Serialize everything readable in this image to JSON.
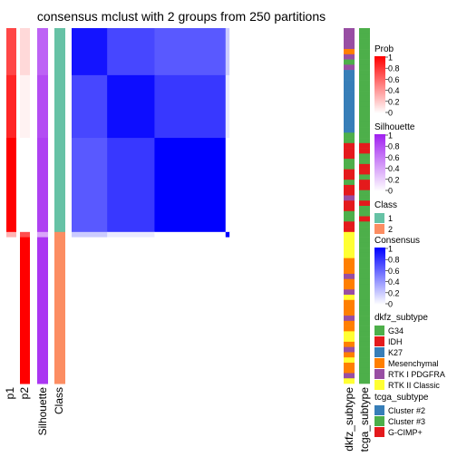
{
  "title": "consensus mclust with 2 groups from 250 partitions",
  "colors": {
    "prob_high": "#ff0000",
    "prob_low": "#ffffff",
    "silhouette_high": "#a020f0",
    "class_1": "#66c2a5",
    "class_2": "#fc8d62",
    "consensus_high": "#0000ff",
    "consensus_low": "#ffffff"
  },
  "chart_data": {
    "type": "heatmap",
    "matrix": {
      "legend_title": "Consensus",
      "groups": [
        {
          "class": 1,
          "rows": 39,
          "blocks": [
            {
              "rows": 9,
              "p1": 0.72,
              "p2": 0.15,
              "silhouette": 0.7
            },
            {
              "rows": 12,
              "p1": 0.85,
              "p2": 0.05,
              "silhouette": 0.8
            },
            {
              "rows": 18,
              "p1": 1.0,
              "p2": 0.0,
              "silhouette": 0.85
            }
          ]
        },
        {
          "class": 2,
          "rows": 29,
          "blocks": [
            {
              "rows": 1,
              "p1": 0.3,
              "p2": 0.7,
              "silhouette": 0.4
            },
            {
              "rows": 28,
              "p1": 0.0,
              "p2": 1.0,
              "silhouette": 0.9
            }
          ]
        }
      ],
      "consensus_blocks": [
        {
          "row_block": 0,
          "col_block": 0,
          "value": 0.92
        },
        {
          "row_block": 0,
          "col_block": 1,
          "value": 0.72
        },
        {
          "row_block": 0,
          "col_block": 2,
          "value": 0.65
        },
        {
          "row_block": 0,
          "col_block": 3,
          "value": 0.2
        },
        {
          "row_block": 1,
          "col_block": 1,
          "value": 0.95
        },
        {
          "row_block": 1,
          "col_block": 2,
          "value": 0.78
        },
        {
          "row_block": 1,
          "col_block": 3,
          "value": 0.08
        },
        {
          "row_block": 2,
          "col_block": 2,
          "value": 1.0
        },
        {
          "row_block": 2,
          "col_block": 3,
          "value": 0.0
        },
        {
          "row_block": 3,
          "col_block": 3,
          "value": 1.0
        }
      ]
    },
    "annotations_left": [
      {
        "name": "p1",
        "legend": "Prob"
      },
      {
        "name": "p2",
        "legend": "Prob"
      },
      {
        "name": "Silhouette",
        "legend": "Silhouette"
      },
      {
        "name": "Class",
        "legend": "Class"
      }
    ],
    "annotations_right": [
      {
        "name": "dkfz_subtype",
        "legend": "dkfz_subtype"
      },
      {
        "name": "tcga_subtype",
        "legend": "tcga_subtype"
      }
    ],
    "dkfz_sequence": [
      "RTK I PDGFRA",
      "RTK I PDGFRA",
      "RTK I PDGFRA",
      "RTK I PDGFRA",
      "Mesenchymal",
      "RTK I PDGFRA",
      "G34",
      "RTK I PDGFRA",
      "K27",
      "K27",
      "K27",
      "K27",
      "K27",
      "K27",
      "K27",
      "K27",
      "K27",
      "K27",
      "K27",
      "K27",
      "G34",
      "G34",
      "IDH",
      "IDH",
      "IDH",
      "G34",
      "G34",
      "IDH",
      "IDH",
      "G34",
      "IDH",
      "IDH",
      "RTK I PDGFRA",
      "IDH",
      "IDH",
      "G34",
      "G34",
      "IDH",
      "IDH",
      "RTK II Classic",
      "RTK II Classic",
      "RTK II Classic",
      "RTK II Classic",
      "RTK II Classic",
      "Mesenchymal",
      "Mesenchymal",
      "Mesenchymal",
      "RTK I PDGFRA",
      "Mesenchymal",
      "Mesenchymal",
      "RTK I PDGFRA",
      "RTK II Classic",
      "Mesenchymal",
      "Mesenchymal",
      "Mesenchymal",
      "RTK I PDGFRA",
      "Mesenchymal",
      "Mesenchymal",
      "RTK II Classic",
      "RTK II Classic",
      "Mesenchymal",
      "RTK I PDGFRA",
      "Mesenchymal",
      "RTK II Classic",
      "Mesenchymal",
      "Mesenchymal",
      "RTK I PDGFRA",
      "RTK II Classic"
    ],
    "tcga_sequence": [
      "Cluster #3",
      "Cluster #3",
      "Cluster #3",
      "Cluster #3",
      "Cluster #3",
      "Cluster #3",
      "Cluster #3",
      "Cluster #3",
      "Cluster #3",
      "Cluster #3",
      "Cluster #3",
      "Cluster #3",
      "Cluster #3",
      "Cluster #3",
      "Cluster #3",
      "Cluster #3",
      "Cluster #3",
      "Cluster #3",
      "Cluster #3",
      "Cluster #3",
      "Cluster #3",
      "Cluster #3",
      "G-CIMP+",
      "G-CIMP+",
      "Cluster #3",
      "Cluster #3",
      "G-CIMP+",
      "G-CIMP+",
      "Cluster #3",
      "G-CIMP+",
      "G-CIMP+",
      "Cluster #3",
      "Cluster #3",
      "G-CIMP+",
      "Cluster #3",
      "Cluster #3",
      "G-CIMP+",
      "Cluster #3",
      "Cluster #3",
      "Cluster #3",
      "Cluster #3",
      "Cluster #3",
      "Cluster #3",
      "Cluster #3",
      "Cluster #3",
      "Cluster #3",
      "Cluster #3",
      "Cluster #3",
      "Cluster #3",
      "Cluster #3",
      "Cluster #3",
      "Cluster #3",
      "Cluster #3",
      "Cluster #3",
      "Cluster #3",
      "Cluster #3",
      "Cluster #3",
      "Cluster #3",
      "Cluster #3",
      "Cluster #3",
      "Cluster #3",
      "Cluster #3",
      "Cluster #3",
      "Cluster #3",
      "Cluster #3",
      "Cluster #3",
      "Cluster #3",
      "Cluster #3"
    ],
    "legends": {
      "prob": {
        "title": "Prob",
        "ticks": [
          "1",
          "0.8",
          "0.6",
          "0.4",
          "0.2",
          "0"
        ]
      },
      "silhouette": {
        "title": "Silhouette",
        "ticks": [
          "1",
          "0.8",
          "0.6",
          "0.4",
          "0.2",
          "0"
        ]
      },
      "class": {
        "title": "Class",
        "items": [
          {
            "label": "1",
            "color": "#66c2a5"
          },
          {
            "label": "2",
            "color": "#fc8d62"
          }
        ]
      },
      "consensus": {
        "title": "Consensus",
        "ticks": [
          "1",
          "0.8",
          "0.6",
          "0.4",
          "0.2",
          "0"
        ]
      },
      "dkfz": {
        "title": "dkfz_subtype",
        "items": [
          {
            "label": "G34",
            "color": "#4daf4a"
          },
          {
            "label": "IDH",
            "color": "#e41a1c"
          },
          {
            "label": "K27",
            "color": "#377eb8"
          },
          {
            "label": "Mesenchymal",
            "color": "#ff7f00"
          },
          {
            "label": "RTK I PDGFRA",
            "color": "#984ea3"
          },
          {
            "label": "RTK II Classic",
            "color": "#ffff33"
          }
        ]
      },
      "tcga": {
        "title": "tcga_subtype",
        "items": [
          {
            "label": "Cluster #2",
            "color": "#377eb8"
          },
          {
            "label": "Cluster #3",
            "color": "#4daf4a"
          },
          {
            "label": "G-CIMP+",
            "color": "#e41a1c"
          }
        ]
      }
    }
  }
}
